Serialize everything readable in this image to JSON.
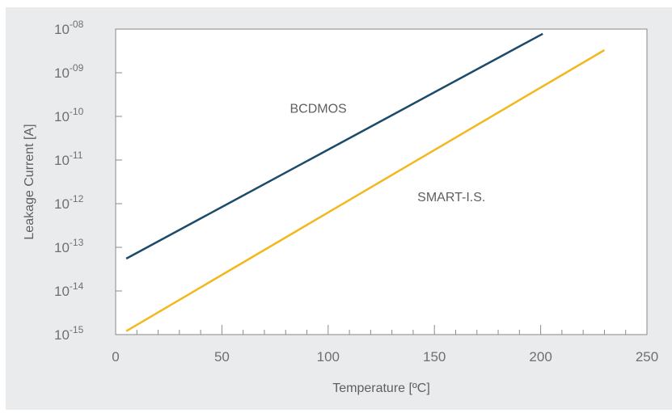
{
  "chart_data": {
    "type": "line",
    "xlabel": "Temperature [ºC]",
    "ylabel": "Leakage Current [A]",
    "xlim": [
      0,
      250
    ],
    "x_ticks": [
      "0",
      "50",
      "100",
      "150",
      "200",
      "250"
    ],
    "ylim": [
      1e-15,
      1e-08
    ],
    "y_scale": "log",
    "y_ticks": [
      {
        "base": "10",
        "exp": "-08"
      },
      {
        "base": "10",
        "exp": "-09"
      },
      {
        "base": "10",
        "exp": "-10"
      },
      {
        "base": "10",
        "exp": "-11"
      },
      {
        "base": "10",
        "exp": "-12"
      },
      {
        "base": "10",
        "exp": "-13"
      },
      {
        "base": "10",
        "exp": "-14"
      },
      {
        "base": "10",
        "exp": "-15"
      }
    ],
    "grid": false,
    "series": [
      {
        "name": "BCDMOS",
        "color": "#1b4a6b",
        "x": [
          5,
          201
        ],
        "y": [
          5.5e-14,
          7.8e-09
        ]
      },
      {
        "name": "SMART-I.S.",
        "color": "#f2b81e",
        "x": [
          5,
          230
        ],
        "y": [
          1.2e-15,
          3.3e-09
        ]
      }
    ],
    "annotations": [
      {
        "text": "BCDMOS",
        "x": 82,
        "y": 1.5e-10
      },
      {
        "text": "SMART-I.S.",
        "x": 142,
        "y": 1.4e-12
      }
    ]
  }
}
